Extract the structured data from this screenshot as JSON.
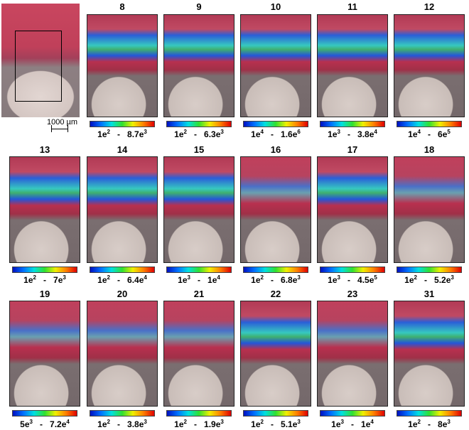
{
  "overview": {
    "scale_bar_label": "1000 µm"
  },
  "separator": "-",
  "panels": [
    {
      "label": "8",
      "min": {
        "mantissa": "1e",
        "exponent": "2"
      },
      "max": {
        "mantissa": "8.7e",
        "exponent": "3"
      }
    },
    {
      "label": "9",
      "min": {
        "mantissa": "1e",
        "exponent": "2"
      },
      "max": {
        "mantissa": "6.3e",
        "exponent": "3"
      }
    },
    {
      "label": "10",
      "min": {
        "mantissa": "1e",
        "exponent": "4"
      },
      "max": {
        "mantissa": "1.6e",
        "exponent": "6"
      }
    },
    {
      "label": "11",
      "min": {
        "mantissa": "1e",
        "exponent": "3"
      },
      "max": {
        "mantissa": "3.8e",
        "exponent": "4"
      }
    },
    {
      "label": "12",
      "min": {
        "mantissa": "1e",
        "exponent": "4"
      },
      "max": {
        "mantissa": "6e",
        "exponent": "5"
      }
    },
    {
      "label": "13",
      "min": {
        "mantissa": "1e",
        "exponent": "2"
      },
      "max": {
        "mantissa": "7e",
        "exponent": "3"
      }
    },
    {
      "label": "14",
      "min": {
        "mantissa": "1e",
        "exponent": "2"
      },
      "max": {
        "mantissa": "6.4e",
        "exponent": "4"
      }
    },
    {
      "label": "15",
      "min": {
        "mantissa": "1e",
        "exponent": "3"
      },
      "max": {
        "mantissa": "1e",
        "exponent": "4"
      }
    },
    {
      "label": "16",
      "min": {
        "mantissa": "1e",
        "exponent": "2"
      },
      "max": {
        "mantissa": "6.8e",
        "exponent": "3"
      }
    },
    {
      "label": "17",
      "min": {
        "mantissa": "1e",
        "exponent": "3"
      },
      "max": {
        "mantissa": "4.5e",
        "exponent": "5"
      }
    },
    {
      "label": "18",
      "min": {
        "mantissa": "1e",
        "exponent": "2"
      },
      "max": {
        "mantissa": "5.2e",
        "exponent": "3"
      }
    },
    {
      "label": "19",
      "min": {
        "mantissa": "5e",
        "exponent": "3"
      },
      "max": {
        "mantissa": "7.2e",
        "exponent": "4"
      }
    },
    {
      "label": "20",
      "min": {
        "mantissa": "1e",
        "exponent": "2"
      },
      "max": {
        "mantissa": "3.8e",
        "exponent": "3"
      }
    },
    {
      "label": "21",
      "min": {
        "mantissa": "1e",
        "exponent": "2"
      },
      "max": {
        "mantissa": "1.9e",
        "exponent": "3"
      }
    },
    {
      "label": "22",
      "min": {
        "mantissa": "1e",
        "exponent": "2"
      },
      "max": {
        "mantissa": "5.1e",
        "exponent": "3"
      }
    },
    {
      "label": "23",
      "min": {
        "mantissa": "1e",
        "exponent": "3"
      },
      "max": {
        "mantissa": "1e",
        "exponent": "4"
      }
    },
    {
      "label": "31",
      "min": {
        "mantissa": "1e",
        "exponent": "2"
      },
      "max": {
        "mantissa": "8e",
        "exponent": "3"
      }
    }
  ]
}
